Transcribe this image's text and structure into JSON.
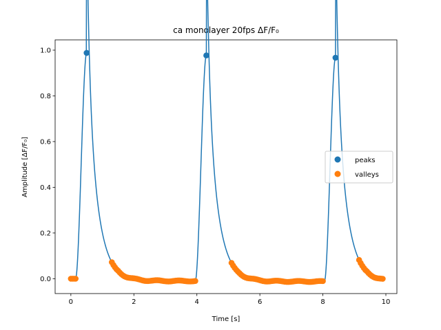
{
  "chart_data": {
    "type": "line",
    "title": "ca monolayer 20fps ΔF/F₀",
    "xlabel": "Time [s]",
    "ylabel": "Amplitude [ΔF/F₀]",
    "xlim": [
      -0.5,
      10.35
    ],
    "ylim": [
      -0.065,
      1.045
    ],
    "xticks": [
      0,
      2,
      4,
      6,
      8,
      10
    ],
    "yticks": [
      0.0,
      0.2,
      0.4,
      0.6,
      0.8,
      1.0
    ],
    "xtick_labels": [
      "0",
      "2",
      "4",
      "6",
      "8",
      "10"
    ],
    "ytick_labels": [
      "0.0",
      "0.2",
      "0.4",
      "0.6",
      "0.8",
      "1.0"
    ],
    "grid": false,
    "legend_position": "center-right",
    "colors": {
      "line": "#1f77b4",
      "peaks": "#1f77b4",
      "valleys": "#ff7f0e"
    },
    "signal": {
      "sampling_rate_hz": 20,
      "baseline_start": 0.0,
      "beats": [
        {
          "onset": 0.15,
          "peak_time": 0.5,
          "peak": 0.988,
          "decay_tau": 0.32,
          "baseline_end": -0.01
        },
        {
          "onset": 3.95,
          "peak_time": 4.3,
          "peak": 0.977,
          "decay_tau": 0.32,
          "baseline_end": -0.012
        },
        {
          "onset": 8.05,
          "peak_time": 8.4,
          "peak": 0.967,
          "decay_tau": 0.32,
          "baseline_end": -0.012
        }
      ],
      "t_end": 9.9
    },
    "series": [
      {
        "name": "peaks",
        "marker": "circle",
        "x": [
          0.5,
          4.3,
          8.4
        ],
        "y": [
          0.988,
          0.977,
          0.967
        ]
      },
      {
        "name": "valleys",
        "marker": "circle",
        "segments": [
          {
            "t_start": 0.0,
            "t_end": 0.15
          },
          {
            "t_start": 1.3,
            "t_end": 3.95
          },
          {
            "t_start": 5.1,
            "t_end": 8.0
          },
          {
            "t_start": 9.15,
            "t_end": 9.9
          }
        ]
      }
    ],
    "legend": [
      {
        "label": "peaks",
        "color": "#1f77b4"
      },
      {
        "label": "valleys",
        "color": "#ff7f0e"
      }
    ]
  }
}
